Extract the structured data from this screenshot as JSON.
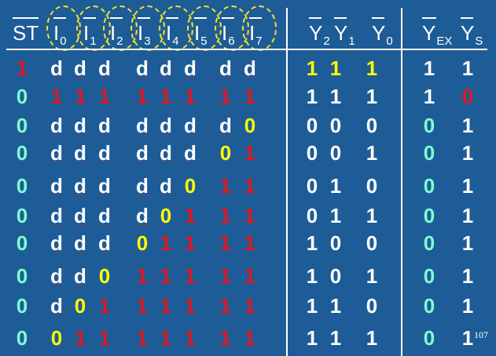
{
  "headers": [
    {
      "name": "ST",
      "sub": ""
    },
    {
      "name": "I",
      "sub": "0"
    },
    {
      "name": "I",
      "sub": "1"
    },
    {
      "name": "I",
      "sub": "2"
    },
    {
      "name": "I",
      "sub": "3"
    },
    {
      "name": "I",
      "sub": "4"
    },
    {
      "name": "I",
      "sub": "5"
    },
    {
      "name": "I",
      "sub": "6"
    },
    {
      "name": "I",
      "sub": "7"
    },
    {
      "name": "Y",
      "sub": "2"
    },
    {
      "name": "Y",
      "sub": "1"
    },
    {
      "name": "Y",
      "sub": "0"
    },
    {
      "name": "Y",
      "sub": "EX"
    },
    {
      "name": "Y",
      "sub": "S"
    }
  ],
  "rows": [
    [
      "1",
      "d",
      "d",
      "d",
      "d",
      "d",
      "d",
      "d",
      "d",
      "1",
      "1",
      "1",
      "1",
      "1"
    ],
    [
      "0",
      "1",
      "1",
      "1",
      "1",
      "1",
      "1",
      "1",
      "1",
      "1",
      "1",
      "1",
      "1",
      "0"
    ],
    [
      "0",
      "d",
      "d",
      "d",
      "d",
      "d",
      "d",
      "d",
      "0",
      "0",
      "0",
      "0",
      "0",
      "1"
    ],
    [
      "0",
      "d",
      "d",
      "d",
      "d",
      "d",
      "d",
      "0",
      "1",
      "0",
      "0",
      "1",
      "0",
      "1"
    ],
    [
      "0",
      "d",
      "d",
      "d",
      "d",
      "d",
      "0",
      "1",
      "1",
      "0",
      "1",
      "0",
      "0",
      "1"
    ],
    [
      "0",
      "d",
      "d",
      "d",
      "d",
      "0",
      "1",
      "1",
      "1",
      "0",
      "1",
      "1",
      "0",
      "1"
    ],
    [
      "0",
      "d",
      "d",
      "d",
      "0",
      "1",
      "1",
      "1",
      "1",
      "1",
      "0",
      "0",
      "0",
      "1"
    ],
    [
      "0",
      "d",
      "d",
      "0",
      "1",
      "1",
      "1",
      "1",
      "1",
      "1",
      "0",
      "1",
      "0",
      "1"
    ],
    [
      "0",
      "d",
      "0",
      "1",
      "1",
      "1",
      "1",
      "1",
      "1",
      "1",
      "1",
      "0",
      "0",
      "1"
    ],
    [
      "0",
      "0",
      "1",
      "1",
      "1",
      "1",
      "1",
      "1",
      "1",
      "1",
      "1",
      "1",
      "0",
      "1"
    ]
  ],
  "colors": [
    [
      "red",
      "white",
      "white",
      "white",
      "white",
      "white",
      "white",
      "white",
      "white",
      "yellow",
      "yellow",
      "yellow",
      "white",
      "white"
    ],
    [
      "green",
      "red",
      "red",
      "red",
      "red",
      "red",
      "red",
      "red",
      "red",
      "white",
      "white",
      "white",
      "white",
      "red"
    ],
    [
      "green",
      "white",
      "white",
      "white",
      "white",
      "white",
      "white",
      "white",
      "yellow",
      "white",
      "white",
      "white",
      "green",
      "white"
    ],
    [
      "green",
      "white",
      "white",
      "white",
      "white",
      "white",
      "white",
      "yellow",
      "red",
      "white",
      "white",
      "white",
      "green",
      "white"
    ],
    [
      "green",
      "white",
      "white",
      "white",
      "white",
      "white",
      "yellow",
      "red",
      "red",
      "white",
      "white",
      "white",
      "green",
      "white"
    ],
    [
      "green",
      "white",
      "white",
      "white",
      "white",
      "yellow",
      "red",
      "red",
      "red",
      "white",
      "white",
      "white",
      "green",
      "white"
    ],
    [
      "green",
      "white",
      "white",
      "white",
      "yellow",
      "red",
      "red",
      "red",
      "red",
      "white",
      "white",
      "white",
      "green",
      "white"
    ],
    [
      "green",
      "white",
      "white",
      "yellow",
      "red",
      "red",
      "red",
      "red",
      "red",
      "white",
      "white",
      "white",
      "green",
      "white"
    ],
    [
      "green",
      "white",
      "yellow",
      "red",
      "red",
      "red",
      "red",
      "red",
      "red",
      "white",
      "white",
      "white",
      "green",
      "white"
    ],
    [
      "green",
      "yellow",
      "red",
      "red",
      "red",
      "red",
      "red",
      "red",
      "red",
      "white",
      "white",
      "white",
      "green",
      "white"
    ]
  ],
  "palette": {
    "white": "#ffffff",
    "red": "#e8141e",
    "yellow": "#ffff00",
    "green": "#7fffd0",
    "background": "#1d5c96",
    "oval": "#f5e22a"
  },
  "page_number": "107"
}
